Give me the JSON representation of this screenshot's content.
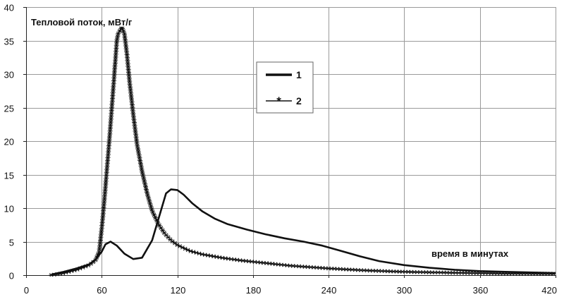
{
  "chart_data": {
    "type": "line",
    "title": "",
    "ylabel": "Тепловой поток, мВт/г",
    "xlabel": "время в минутах",
    "xlim": [
      0,
      420
    ],
    "ylim": [
      0,
      40
    ],
    "x_ticks": [
      "0",
      "60",
      "120",
      "180",
      "240",
      "300",
      "360",
      "420"
    ],
    "y_ticks": [
      "0",
      "5",
      "10",
      "15",
      "20",
      "25",
      "30",
      "35",
      "40"
    ],
    "grid": true,
    "legend_position": "center",
    "series": [
      {
        "name": "1",
        "style": "thick-line",
        "color": "#111111",
        "points": [
          [
            20,
            0.1
          ],
          [
            30,
            0.5
          ],
          [
            40,
            1.0
          ],
          [
            50,
            1.6
          ],
          [
            55,
            2.3
          ],
          [
            60,
            3.5
          ],
          [
            63,
            4.6
          ],
          [
            67,
            5.0
          ],
          [
            72,
            4.4
          ],
          [
            78,
            3.2
          ],
          [
            85,
            2.4
          ],
          [
            92,
            2.6
          ],
          [
            100,
            5.2
          ],
          [
            106,
            9.0
          ],
          [
            111,
            12.2
          ],
          [
            115,
            12.8
          ],
          [
            120,
            12.7
          ],
          [
            125,
            12.0
          ],
          [
            132,
            10.7
          ],
          [
            140,
            9.5
          ],
          [
            150,
            8.4
          ],
          [
            160,
            7.6
          ],
          [
            175,
            6.8
          ],
          [
            190,
            6.1
          ],
          [
            205,
            5.5
          ],
          [
            220,
            5.0
          ],
          [
            235,
            4.4
          ],
          [
            250,
            3.6
          ],
          [
            265,
            2.8
          ],
          [
            280,
            2.1
          ],
          [
            300,
            1.5
          ],
          [
            320,
            1.1
          ],
          [
            340,
            0.8
          ],
          [
            360,
            0.6
          ],
          [
            380,
            0.5
          ],
          [
            400,
            0.4
          ],
          [
            420,
            0.3
          ]
        ]
      },
      {
        "name": "2",
        "style": "line-asterisk",
        "color": "#111111",
        "points": [
          [
            20,
            0.0
          ],
          [
            30,
            0.3
          ],
          [
            40,
            0.8
          ],
          [
            50,
            1.5
          ],
          [
            55,
            2.2
          ],
          [
            58,
            3.5
          ],
          [
            60,
            7.0
          ],
          [
            62,
            11.0
          ],
          [
            64,
            15.5
          ],
          [
            66,
            20.0
          ],
          [
            68,
            25.0
          ],
          [
            70,
            30.0
          ],
          [
            72,
            35.0
          ],
          [
            73,
            36.0
          ],
          [
            76,
            37.0
          ],
          [
            78,
            36.0
          ],
          [
            80,
            33.0
          ],
          [
            82,
            29.0
          ],
          [
            85,
            24.0
          ],
          [
            88,
            19.5
          ],
          [
            92,
            15.5
          ],
          [
            96,
            12.2
          ],
          [
            100,
            9.6
          ],
          [
            105,
            7.6
          ],
          [
            110,
            6.2
          ],
          [
            115,
            5.2
          ],
          [
            120,
            4.5
          ],
          [
            130,
            3.6
          ],
          [
            140,
            3.1
          ],
          [
            155,
            2.6
          ],
          [
            170,
            2.2
          ],
          [
            190,
            1.8
          ],
          [
            210,
            1.4
          ],
          [
            240,
            1.0
          ],
          [
            270,
            0.7
          ],
          [
            300,
            0.5
          ],
          [
            340,
            0.35
          ],
          [
            380,
            0.25
          ],
          [
            420,
            0.2
          ]
        ]
      }
    ]
  }
}
